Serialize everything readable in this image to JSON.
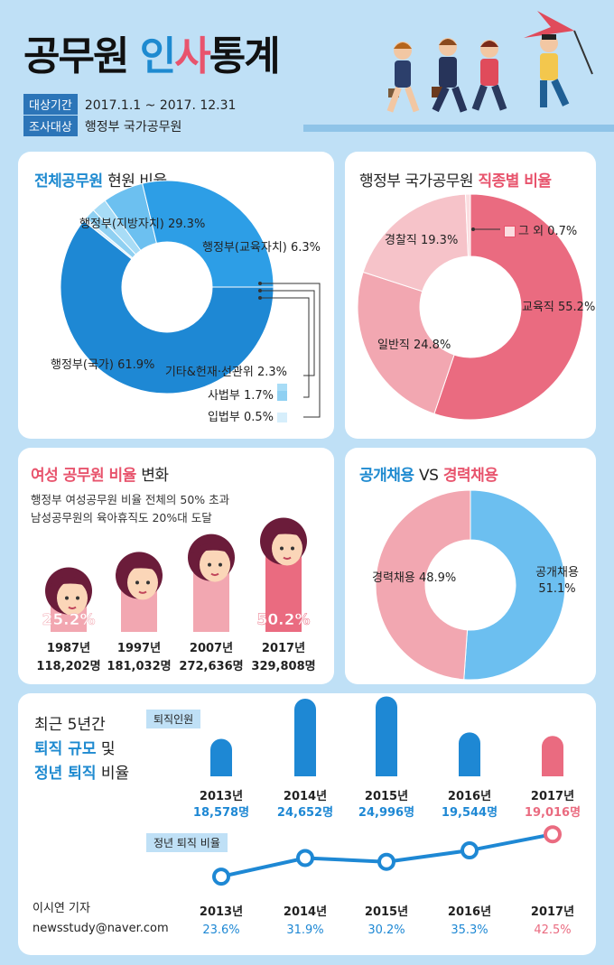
{
  "header": {
    "title_a": "공무원",
    "title_b": "인",
    "title_c": "사",
    "title_d": "통계",
    "period_tag": "대상기간",
    "period_value": "2017.1.1 ~ 2017. 12.31",
    "target_tag": "조사대상",
    "target_value": "행정부 국가공무원"
  },
  "panel1": {
    "title_colored": "전체공무원",
    "title_plain": "현원 비율"
  },
  "panel2": {
    "title_plain": "행정부 국가공무원",
    "title_colored": "직종별 비율"
  },
  "panel3": {
    "title_colored": "여성 공무원 비율",
    "title_plain": "변화",
    "line1": "행정부 여성공무원 비율 전체의 50% 초과",
    "line2": "남성공무원의 육아휴직도 20%대 도달"
  },
  "panel4": {
    "title_a": "공개채용",
    "title_vs": "VS",
    "title_b": "경력채용"
  },
  "panel5": {
    "heading1": "최근 5년간",
    "heading2": "퇴직 규모",
    "heading3": "및",
    "heading4": "정년 퇴직",
    "heading5": "비율",
    "retire_tag": "퇴직인원",
    "ratio_tag": "정년 퇴직 비율",
    "reporter": "이시연 기자",
    "email": "newsstudy@naver.com"
  },
  "chart_data": [
    {
      "type": "pie",
      "title": "전체공무원 현원 비율",
      "slices": [
        {
          "name": "행정부(국가)",
          "value": 61.9,
          "color": "#1e88d4"
        },
        {
          "name": "행정부(지방자치)",
          "value": 29.3,
          "color": "#2d9ee6"
        },
        {
          "name": "행정부(교육자치)",
          "value": 6.3,
          "color": "#6cc0f0"
        },
        {
          "name": "기타&헌재·선관위",
          "value": 2.3,
          "color": "#a8dcf6"
        },
        {
          "name": "사법부",
          "value": 1.7,
          "color": "#8fd0f2"
        },
        {
          "name": "입법부",
          "value": 0.5,
          "color": "#d6eefb"
        }
      ],
      "labels": [
        "행정부(국가) 61.9%",
        "행정부(지방자치) 29.3%",
        "행정부(교육자치) 6.3%",
        "기타&헌재·선관위 2.3%",
        "사법부 1.7%",
        "입법부 0.5%"
      ]
    },
    {
      "type": "pie",
      "title": "행정부 국가공무원 직종별 비율",
      "slices": [
        {
          "name": "교육직",
          "value": 55.2,
          "color": "#ea6b80"
        },
        {
          "name": "일반직",
          "value": 24.8,
          "color": "#f2a7b1"
        },
        {
          "name": "경찰직",
          "value": 19.3,
          "color": "#f6c3c9"
        },
        {
          "name": "그 외",
          "value": 0.7,
          "color": "#fbdde0"
        }
      ],
      "labels": [
        "교육직 55.2%",
        "일반직 24.8%",
        "경찰직 19.3%",
        "그 외 0.7%"
      ]
    },
    {
      "type": "bar",
      "title": "여성 공무원 비율 변화",
      "categories": [
        "1987년",
        "1997년",
        "2007년",
        "2017년"
      ],
      "headcount": [
        "118,202명",
        "181,032명",
        "272,636명",
        "329,808명"
      ],
      "values": [
        25.2,
        33.0,
        42.0,
        50.2
      ],
      "value_labels": [
        "25.2%",
        "",
        "",
        "50.2%"
      ]
    },
    {
      "type": "pie",
      "title": "공개채용 VS 경력채용",
      "slices": [
        {
          "name": "공개채용",
          "value": 51.1,
          "color": "#6cbff0"
        },
        {
          "name": "경력채용",
          "value": 48.9,
          "color": "#f2a7b1"
        }
      ],
      "labels": [
        "공개채용 51.1%",
        "경력채용 48.9%"
      ]
    },
    {
      "type": "bar",
      "title": "퇴직인원",
      "categories": [
        "2013년",
        "2014년",
        "2015년",
        "2016년",
        "2017년"
      ],
      "values": [
        18578,
        24652,
        24996,
        19544,
        19016
      ],
      "value_labels": [
        "18,578명",
        "24,652명",
        "24,996명",
        "19,544명",
        "19,016명"
      ]
    },
    {
      "type": "line",
      "title": "정년 퇴직 비율",
      "categories": [
        "2013년",
        "2014년",
        "2015년",
        "2016년",
        "2017년"
      ],
      "values": [
        23.6,
        31.9,
        30.2,
        35.3,
        42.5
      ],
      "value_labels": [
        "23.6%",
        "31.9%",
        "30.2%",
        "35.3%",
        "42.5%"
      ]
    }
  ]
}
